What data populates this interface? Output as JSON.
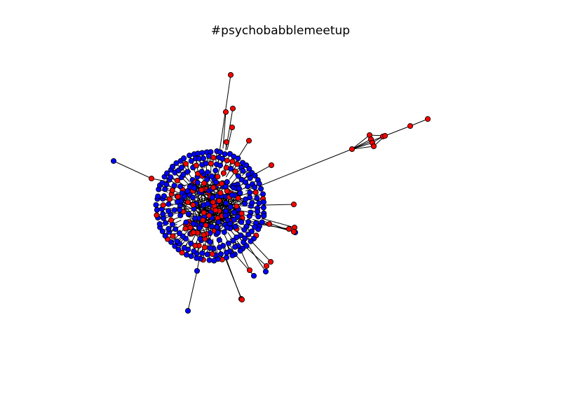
{
  "figure": {
    "title": "#psychobabblemeetup"
  },
  "colors": {
    "background": "#ffffff",
    "edge": "#000000",
    "node_outline": "#000000",
    "node_type_a": "#0000ff",
    "node_type_b": "#ff0000"
  },
  "network": {
    "layout": "spring",
    "node_colors_present": [
      "blue",
      "red"
    ],
    "structure": "one dense central cluster with a few radiating spokes and a small satellite group to the upper right"
  }
}
